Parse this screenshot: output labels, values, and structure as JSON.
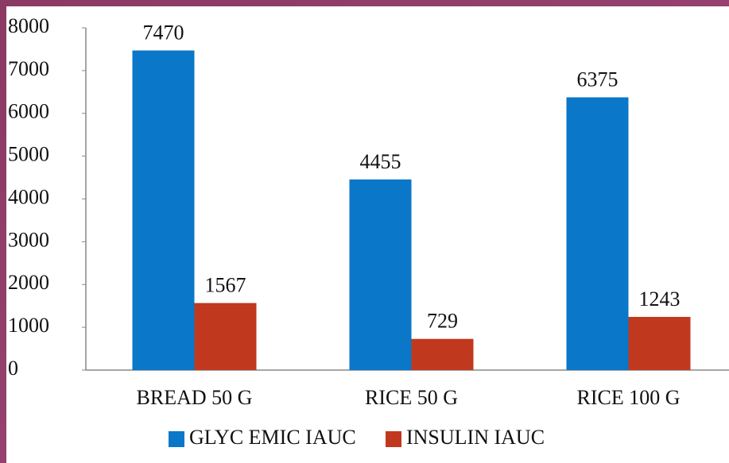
{
  "chart_data": {
    "type": "bar",
    "categories": [
      "BREAD 50 G",
      "RICE 50 G",
      "RICE 100 G"
    ],
    "series": [
      {
        "name": "GLYC EMIC IAUC",
        "color": "#0a77c8",
        "values": [
          7470,
          4455,
          6375
        ]
      },
      {
        "name": "INSULIN IAUC",
        "color": "#c0391f",
        "values": [
          1567,
          729,
          1243
        ]
      }
    ],
    "ylim": [
      0,
      8000
    ],
    "yticks": [
      0,
      1000,
      2000,
      3000,
      4000,
      5000,
      6000,
      7000,
      8000
    ],
    "legend": "bottom",
    "grid": false
  }
}
